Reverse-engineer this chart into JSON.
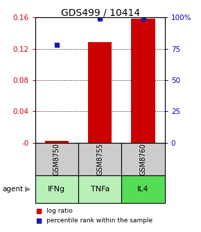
{
  "title": "GDS499 / 10414",
  "samples": [
    "GSM8750",
    "GSM8755",
    "GSM8760"
  ],
  "agents": [
    "IFNg",
    "TNFa",
    "IL4"
  ],
  "log_ratios": [
    0.002,
    0.128,
    0.158
  ],
  "percentile_ranks": [
    78,
    99,
    99
  ],
  "ylim_left": [
    0,
    0.16
  ],
  "ylim_right": [
    0,
    100
  ],
  "yticks_left": [
    0,
    0.04,
    0.08,
    0.12,
    0.16
  ],
  "ytick_labels_left": [
    "-0",
    "0.04",
    "0.08",
    "0.12",
    "0.16"
  ],
  "yticks_right": [
    0,
    25,
    50,
    75,
    100
  ],
  "ytick_labels_right": [
    "0",
    "25",
    "50",
    "75",
    "100%"
  ],
  "bar_color": "#cc0000",
  "scatter_color": "#1a1aaa",
  "agent_colors": [
    "#b8f0b8",
    "#b8f0b8",
    "#55dd55"
  ],
  "gsm_bg_color": "#cccccc",
  "legend_items": [
    {
      "color": "#cc0000",
      "label": "log ratio"
    },
    {
      "color": "#1a1aaa",
      "label": "percentile rank within the sample"
    }
  ],
  "bar_width": 0.55
}
